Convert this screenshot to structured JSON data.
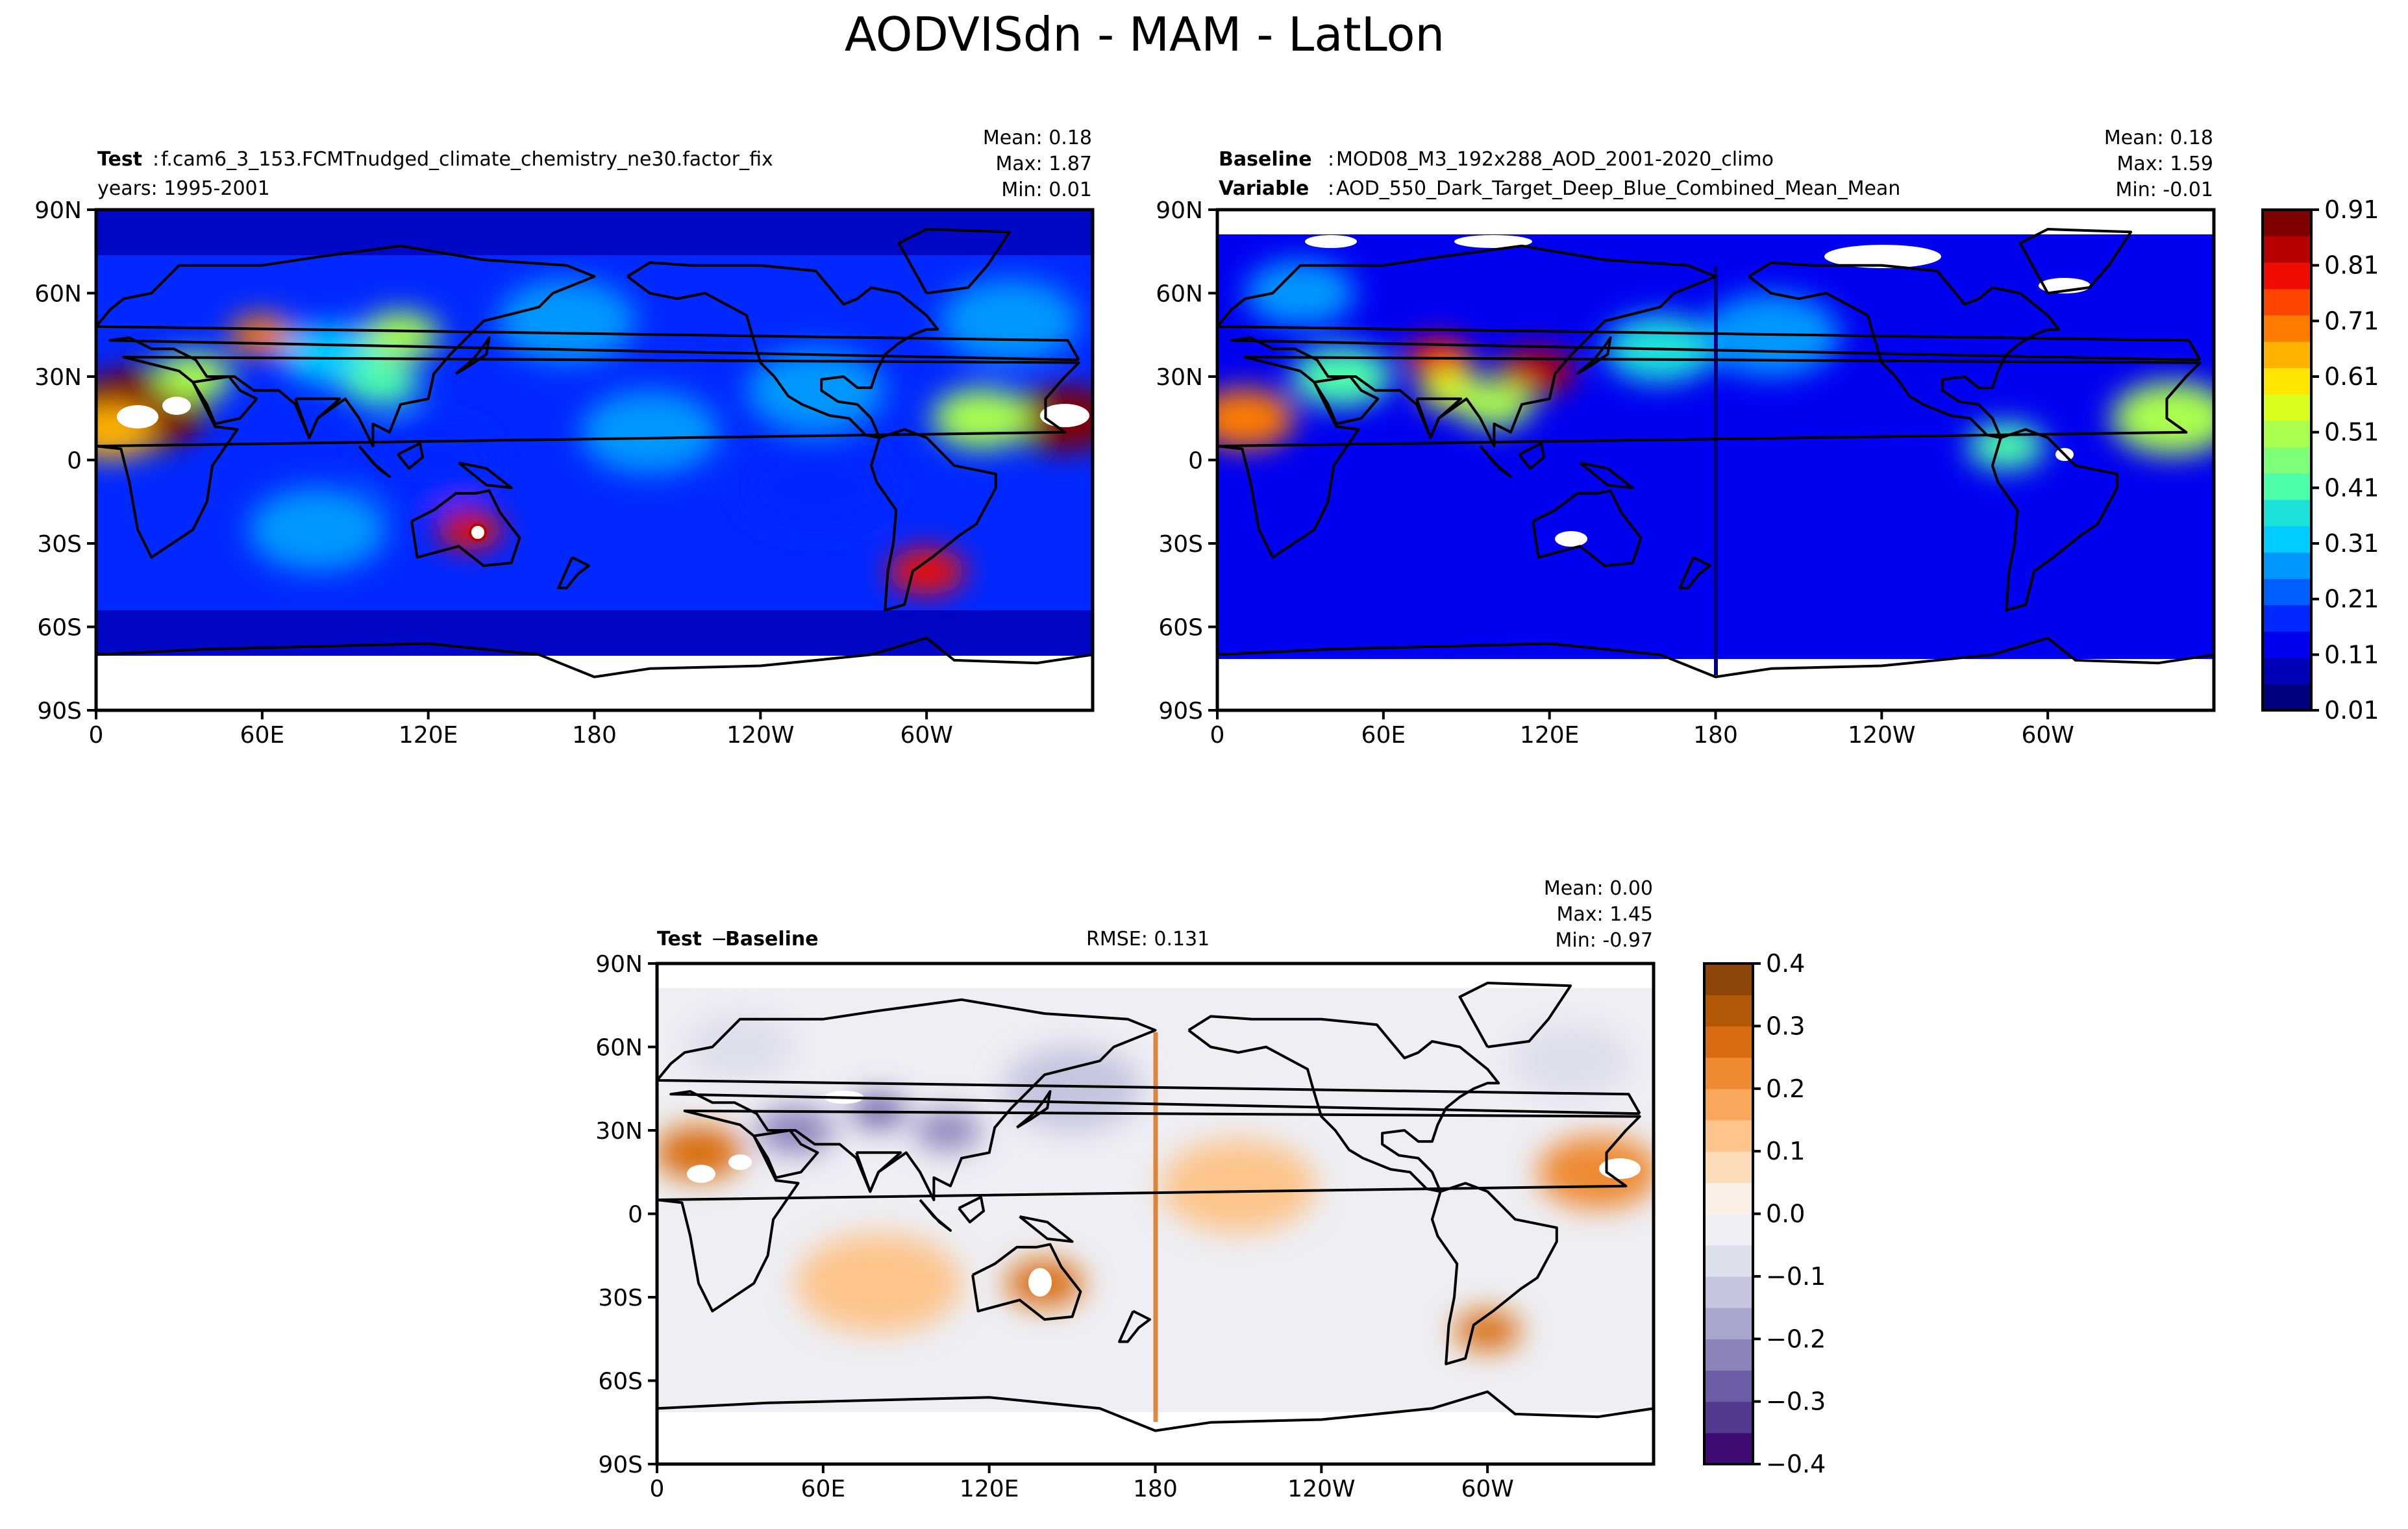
{
  "title": "AODVISdn - MAM - LatLon",
  "chart_data": [
    {
      "type": "heatmap",
      "name": "test",
      "header": {
        "label": "Test",
        "text": "f.cam6_3_153.FCMTnudged_climate_chemistry_ne30.factor_fix",
        "years": "years: 1995-2001"
      },
      "stats": {
        "mean": "Mean:  0.18",
        "max": "Max:  1.87",
        "min": "Min:  0.01"
      },
      "xlim": [
        0,
        360
      ],
      "ylim": [
        -90,
        90
      ],
      "features": [
        {
          "lon": 15,
          "lat": 18,
          "value": 0.95,
          "size": 25
        },
        {
          "lon": 5,
          "lat": 10,
          "value": 0.7,
          "size": 16
        },
        {
          "lon": 35,
          "lat": 30,
          "value": 0.55,
          "size": 14
        },
        {
          "lon": 60,
          "lat": 45,
          "value": 0.75,
          "size": 12
        },
        {
          "lon": 85,
          "lat": 38,
          "value": 0.35,
          "size": 18
        },
        {
          "lon": 110,
          "lat": 45,
          "value": 0.55,
          "size": 14
        },
        {
          "lon": 103,
          "lat": 28,
          "value": 0.45,
          "size": 14
        },
        {
          "lon": 135,
          "lat": -25,
          "value": 0.85,
          "size": 12
        },
        {
          "lon": 300,
          "lat": -40,
          "value": 0.85,
          "size": 14
        },
        {
          "lon": 350,
          "lat": 15,
          "value": 0.95,
          "size": 20
        },
        {
          "lon": 320,
          "lat": 15,
          "value": 0.55,
          "size": 18
        },
        {
          "lon": 200,
          "lat": 10,
          "value": 0.3,
          "size": 25
        },
        {
          "lon": 260,
          "lat": 25,
          "value": 0.28,
          "size": 25
        },
        {
          "lon": 170,
          "lat": 50,
          "value": 0.3,
          "size": 25
        },
        {
          "lon": 330,
          "lat": 50,
          "value": 0.3,
          "size": 25
        },
        {
          "lon": 80,
          "lat": -25,
          "value": 0.28,
          "size": 25
        },
        {
          "lon": 120,
          "lat": 0,
          "value": 0.2,
          "size": 25
        },
        {
          "lon": 260,
          "lat": -10,
          "value": 0.2,
          "size": 28
        }
      ]
    },
    {
      "type": "heatmap",
      "name": "baseline",
      "header": {
        "label": "Baseline",
        "text": "MOD08_M3_192x288_AOD_2001-2020_climo",
        "label2": "Variable",
        "text2": "AOD_550_Dark_Target_Deep_Blue_Combined_Mean_Mean"
      },
      "stats": {
        "mean": "Mean:  0.18",
        "max": "Max:  1.59",
        "min": "Min: -0.01"
      },
      "xlim": [
        0,
        360
      ],
      "ylim": [
        -90,
        90
      ],
      "features": [
        {
          "lon": 10,
          "lat": 15,
          "value": 0.75,
          "size": 18
        },
        {
          "lon": 80,
          "lat": 37,
          "value": 0.85,
          "size": 12
        },
        {
          "lon": 115,
          "lat": 32,
          "value": 0.9,
          "size": 14
        },
        {
          "lon": 85,
          "lat": 25,
          "value": 0.6,
          "size": 12
        },
        {
          "lon": 100,
          "lat": 20,
          "value": 0.55,
          "size": 14
        },
        {
          "lon": 45,
          "lat": 30,
          "value": 0.45,
          "size": 18
        },
        {
          "lon": 160,
          "lat": 40,
          "value": 0.4,
          "size": 20
        },
        {
          "lon": 345,
          "lat": 15,
          "value": 0.55,
          "size": 22
        },
        {
          "lon": 285,
          "lat": 5,
          "value": 0.45,
          "size": 14
        },
        {
          "lon": 30,
          "lat": 60,
          "value": 0.3,
          "size": 20
        },
        {
          "lon": 200,
          "lat": 45,
          "value": 0.28,
          "size": 25
        }
      ]
    },
    {
      "type": "heatmap",
      "name": "diff",
      "header": {
        "label": "Test",
        "op": "−",
        "label2": "Baseline",
        "rmse": "RMSE: 0.131"
      },
      "stats": {
        "mean": "Mean:  0.00",
        "max": "Max:  1.45",
        "min": "Min: -0.97"
      },
      "xlim": [
        0,
        360
      ],
      "ylim": [
        -90,
        90
      ],
      "features": [
        {
          "lon": 15,
          "lat": 22,
          "value": 0.3,
          "size": 16
        },
        {
          "lon": 140,
          "lat": -25,
          "value": 0.3,
          "size": 14
        },
        {
          "lon": 300,
          "lat": -42,
          "value": 0.3,
          "size": 12
        },
        {
          "lon": 340,
          "lat": 15,
          "value": 0.22,
          "size": 22
        },
        {
          "lon": 210,
          "lat": 10,
          "value": 0.12,
          "size": 28
        },
        {
          "lon": 80,
          "lat": -25,
          "value": 0.12,
          "size": 30
        },
        {
          "lon": 50,
          "lat": 30,
          "value": -0.25,
          "size": 14
        },
        {
          "lon": 80,
          "lat": 37,
          "value": -0.3,
          "size": 10
        },
        {
          "lon": 105,
          "lat": 30,
          "value": -0.25,
          "size": 12
        },
        {
          "lon": 150,
          "lat": 45,
          "value": -0.12,
          "size": 25
        },
        {
          "lon": 30,
          "lat": 60,
          "value": -0.1,
          "size": 20
        },
        {
          "lon": 330,
          "lat": 55,
          "value": -0.1,
          "size": 22
        }
      ]
    }
  ],
  "axes": {
    "x_ticks": [
      "0",
      "60E",
      "120E",
      "180",
      "120W",
      "60W"
    ],
    "y_ticks": [
      "90N",
      "60N",
      "30N",
      "0",
      "30S",
      "60S",
      "90S"
    ]
  },
  "colorbars": {
    "main": {
      "ticks": [
        "0.91",
        "0.81",
        "0.71",
        "0.61",
        "0.51",
        "0.41",
        "0.31",
        "0.21",
        "0.11",
        "0.01"
      ],
      "colors": [
        "#00007f",
        "#0000b8",
        "#0000f0",
        "#0028ff",
        "#0060ff",
        "#0098ff",
        "#00ccff",
        "#1de2da",
        "#4dffaa",
        "#7dff7a",
        "#aaff4d",
        "#daff1d",
        "#ffe600",
        "#ffb300",
        "#ff7c00",
        "#ff4600",
        "#f00c00",
        "#b80000",
        "#7f0000"
      ]
    },
    "diff": {
      "ticks": [
        "0.4",
        "0.3",
        "0.2",
        "0.1",
        "0.0",
        "−0.1",
        "−0.2",
        "−0.3",
        "−0.4"
      ],
      "colors": [
        "#3f0a72",
        "#533990",
        "#6d5da8",
        "#8b84bb",
        "#a8a5cf",
        "#c5c5e0",
        "#dedfed",
        "#eeeef4",
        "#fbefe5",
        "#fddcb9",
        "#fdc48b",
        "#f9a75b",
        "#ee8a31",
        "#d96c10",
        "#b35806",
        "#8d4608"
      ]
    }
  }
}
